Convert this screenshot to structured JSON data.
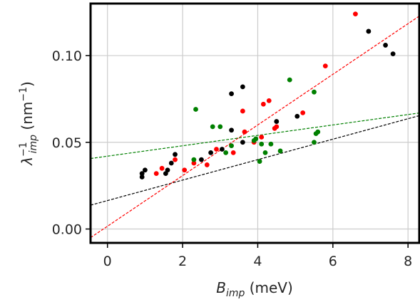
{
  "chart_data": {
    "type": "scatter",
    "xlabel": {
      "main": "B",
      "sub": "imp",
      "rest": " (meV)"
    },
    "ylabel": {
      "main": "λ",
      "sup": "−1",
      "sub": "imp",
      "rest": " (nm",
      "rest_sup": "−1",
      "end": ")"
    },
    "xlim": [
      -0.45,
      8.3
    ],
    "ylim": [
      -0.008,
      0.13
    ],
    "xticks": [
      0,
      2,
      4,
      6,
      8
    ],
    "xtick_labels": [
      "0",
      "2",
      "4",
      "6",
      "8"
    ],
    "yticks": [
      0.0,
      0.05,
      0.1
    ],
    "ytick_labels": [
      "0.00",
      "0.05",
      "0.10"
    ],
    "grid": true,
    "series": [
      {
        "color": "#000000",
        "points": [
          [
            0.92,
            0.03
          ],
          [
            0.92,
            0.032
          ],
          [
            1.0,
            0.034
          ],
          [
            1.55,
            0.032
          ],
          [
            1.6,
            0.034
          ],
          [
            1.7,
            0.038
          ],
          [
            1.8,
            0.043
          ],
          [
            2.5,
            0.04
          ],
          [
            2.75,
            0.044
          ],
          [
            3.05,
            0.046
          ],
          [
            3.3,
            0.057
          ],
          [
            3.3,
            0.078
          ],
          [
            3.6,
            0.082
          ],
          [
            3.6,
            0.05
          ],
          [
            4.5,
            0.062
          ],
          [
            5.05,
            0.065
          ],
          [
            6.95,
            0.114
          ],
          [
            7.4,
            0.106
          ],
          [
            7.6,
            0.101
          ]
        ],
        "fit": {
          "slope": 0.0059,
          "intercept": 0.0164
        }
      },
      {
        "color": "#ff0000",
        "points": [
          [
            1.3,
            0.032
          ],
          [
            1.45,
            0.035
          ],
          [
            1.8,
            0.04
          ],
          [
            2.05,
            0.034
          ],
          [
            2.3,
            0.038
          ],
          [
            2.65,
            0.037
          ],
          [
            2.9,
            0.046
          ],
          [
            3.35,
            0.044
          ],
          [
            3.6,
            0.068
          ],
          [
            3.65,
            0.056
          ],
          [
            3.9,
            0.05
          ],
          [
            4.1,
            0.053
          ],
          [
            4.15,
            0.072
          ],
          [
            4.3,
            0.074
          ],
          [
            4.45,
            0.058
          ],
          [
            4.5,
            0.059
          ],
          [
            5.2,
            0.067
          ],
          [
            5.8,
            0.094
          ],
          [
            6.6,
            0.124
          ]
        ],
        "fit": {
          "slope": 0.0146,
          "intercept": 0.0016
        }
      },
      {
        "color": "#008000",
        "points": [
          [
            2.3,
            0.04
          ],
          [
            2.35,
            0.069
          ],
          [
            2.8,
            0.059
          ],
          [
            3.0,
            0.059
          ],
          [
            3.15,
            0.044
          ],
          [
            3.3,
            0.048
          ],
          [
            3.9,
            0.051
          ],
          [
            3.95,
            0.052
          ],
          [
            4.05,
            0.039
          ],
          [
            4.1,
            0.049
          ],
          [
            4.2,
            0.044
          ],
          [
            4.35,
            0.049
          ],
          [
            4.6,
            0.045
          ],
          [
            4.85,
            0.086
          ],
          [
            5.5,
            0.079
          ],
          [
            5.5,
            0.05
          ],
          [
            5.55,
            0.055
          ],
          [
            5.6,
            0.056
          ]
        ],
        "fit": {
          "slope": 0.003,
          "intercept": 0.042
        }
      }
    ]
  }
}
